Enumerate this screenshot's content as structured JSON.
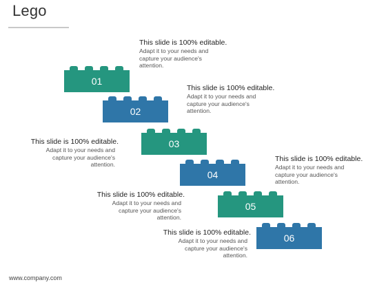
{
  "title": "Lego",
  "bricks": [
    {
      "label": "01",
      "color": "#25967f"
    },
    {
      "label": "02",
      "color": "#2f76a8"
    },
    {
      "label": "03",
      "color": "#25967f"
    },
    {
      "label": "04",
      "color": "#2f76a8"
    },
    {
      "label": "05",
      "color": "#25967f"
    },
    {
      "label": "06",
      "color": "#2f76a8"
    }
  ],
  "notes": [
    {
      "head": "This slide is 100% editable.",
      "desc": "Adapt it to your needs and capture your audience's attention."
    },
    {
      "head": "This slide is 100% editable.",
      "desc": "Adapt it to your needs and capture your audience's attention."
    },
    {
      "head": "This slide is 100% editable.",
      "desc": "Adapt it to your needs and capture your audience's attention."
    },
    {
      "head": "This slide is 100% editable.",
      "desc": "Adapt it to your needs and capture your audience's attention."
    },
    {
      "head": "This slide is 100% editable.",
      "desc": "Adapt it to your needs and capture your audience's attention."
    },
    {
      "head": "This slide is 100% editable.",
      "desc": "Adapt it to your needs and capture your audience's attention."
    }
  ],
  "footer": "www.company.com"
}
